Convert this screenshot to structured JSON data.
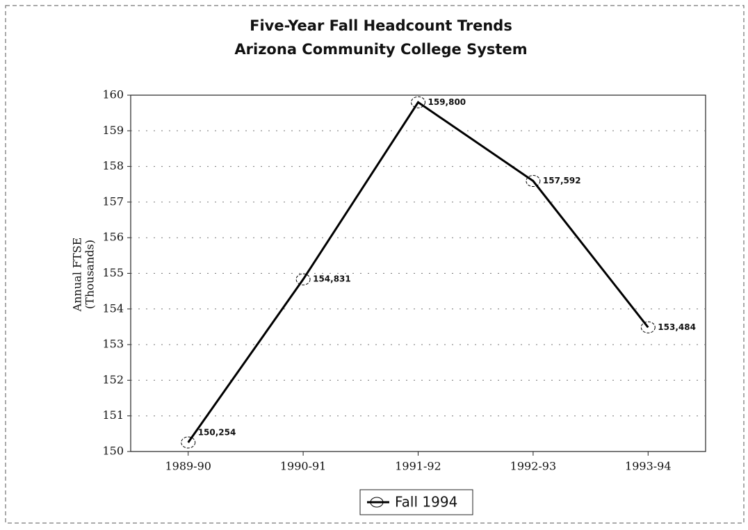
{
  "chart_data": {
    "type": "line",
    "title": "Five-Year Fall Headcount Trends",
    "subtitle": "Arizona Community College System",
    "ylabel": [
      "Annual FTSE",
      "(Thousands)"
    ],
    "categories": [
      "1989-90",
      "1990-91",
      "1991-92",
      "1992-93",
      "1993-94"
    ],
    "series": [
      {
        "name": "Fall 1994",
        "color": "#000000",
        "values": [
          150.254,
          154.831,
          159.8,
          157.592,
          153.484
        ],
        "value_labels": [
          "150,254",
          "154,831",
          "159,800",
          "157,592",
          "153,484"
        ]
      }
    ],
    "ylim": [
      150,
      160
    ],
    "yticks": [
      150,
      151,
      152,
      153,
      154,
      155,
      156,
      157,
      158,
      159,
      160
    ],
    "grid": true,
    "legend": "bottom"
  }
}
